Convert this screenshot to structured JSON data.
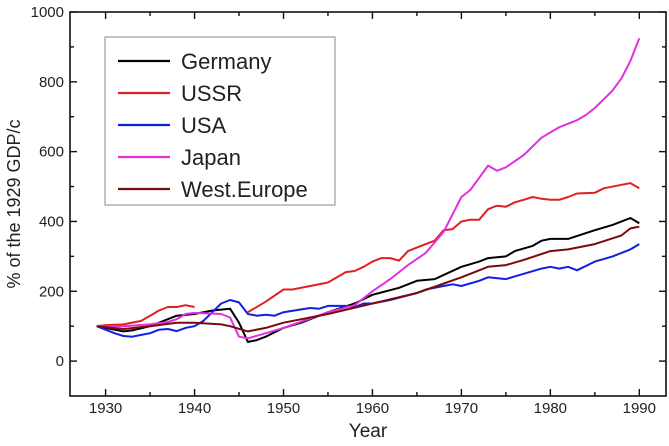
{
  "chart_data": {
    "type": "line",
    "title": "",
    "xlabel": "Year",
    "ylabel": "% of the 1929 GDP/c",
    "xlim": [
      1926,
      1993
    ],
    "ylim": [
      -100,
      1000
    ],
    "xticks": [
      1930,
      1940,
      1950,
      1960,
      1970,
      1980,
      1990
    ],
    "yticks": [
      0,
      200,
      400,
      600,
      800,
      1000
    ],
    "grid": false,
    "legend_position": "top-left",
    "series": [
      {
        "name": "Germany",
        "color": "#000000",
        "segments": [
          [
            [
              1929,
              100
            ],
            [
              1930,
              95
            ],
            [
              1932,
              85
            ],
            [
              1933,
              88
            ],
            [
              1935,
              100
            ],
            [
              1937,
              120
            ],
            [
              1938,
              130
            ],
            [
              1940,
              135
            ],
            [
              1942,
              145
            ],
            [
              1944,
              150
            ],
            [
              1945,
              110
            ],
            [
              1946,
              55
            ],
            [
              1947,
              60
            ],
            [
              1948,
              70
            ],
            [
              1950,
              95
            ],
            [
              1952,
              110
            ],
            [
              1955,
              140
            ],
            [
              1958,
              165
            ],
            [
              1960,
              190
            ],
            [
              1963,
              210
            ],
            [
              1965,
              230
            ],
            [
              1967,
              235
            ],
            [
              1970,
              270
            ],
            [
              1972,
              285
            ],
            [
              1973,
              295
            ],
            [
              1975,
              300
            ],
            [
              1976,
              315
            ],
            [
              1978,
              330
            ],
            [
              1979,
              345
            ],
            [
              1980,
              350
            ],
            [
              1982,
              350
            ],
            [
              1985,
              375
            ],
            [
              1987,
              390
            ],
            [
              1989,
              410
            ],
            [
              1990,
              395
            ]
          ]
        ]
      },
      {
        "name": "USSR",
        "color": "#e02020",
        "segments": [
          [
            [
              1929,
              100
            ],
            [
              1930,
              103
            ],
            [
              1932,
              105
            ],
            [
              1934,
              115
            ],
            [
              1935,
              130
            ],
            [
              1936,
              145
            ],
            [
              1937,
              155
            ],
            [
              1938,
              155
            ],
            [
              1939,
              160
            ],
            [
              1940,
              155
            ]
          ],
          [
            [
              1946,
              140
            ],
            [
              1948,
              170
            ],
            [
              1950,
              205
            ],
            [
              1951,
              205
            ],
            [
              1953,
              215
            ],
            [
              1955,
              225
            ],
            [
              1957,
              255
            ],
            [
              1958,
              258
            ],
            [
              1959,
              270
            ],
            [
              1960,
              285
            ],
            [
              1961,
              295
            ],
            [
              1962,
              295
            ],
            [
              1963,
              288
            ],
            [
              1964,
              315
            ],
            [
              1965,
              325
            ],
            [
              1966,
              335
            ],
            [
              1967,
              345
            ],
            [
              1968,
              375
            ],
            [
              1969,
              378
            ],
            [
              1970,
              400
            ],
            [
              1971,
              405
            ],
            [
              1972,
              405
            ],
            [
              1973,
              435
            ],
            [
              1974,
              445
            ],
            [
              1975,
              442
            ],
            [
              1976,
              455
            ],
            [
              1977,
              462
            ],
            [
              1978,
              470
            ],
            [
              1979,
              465
            ],
            [
              1980,
              462
            ],
            [
              1981,
              462
            ],
            [
              1982,
              470
            ],
            [
              1983,
              480
            ],
            [
              1985,
              482
            ],
            [
              1986,
              495
            ],
            [
              1988,
              505
            ],
            [
              1989,
              510
            ],
            [
              1990,
              495
            ]
          ]
        ]
      },
      {
        "name": "USA",
        "color": "#1020e0",
        "segments": [
          [
            [
              1929,
              100
            ],
            [
              1930,
              90
            ],
            [
              1931,
              80
            ],
            [
              1932,
              72
            ],
            [
              1933,
              70
            ],
            [
              1934,
              75
            ],
            [
              1935,
              80
            ],
            [
              1936,
              90
            ],
            [
              1937,
              92
            ],
            [
              1938,
              86
            ],
            [
              1939,
              95
            ],
            [
              1940,
              100
            ],
            [
              1941,
              115
            ],
            [
              1942,
              140
            ],
            [
              1943,
              165
            ],
            [
              1944,
              175
            ],
            [
              1945,
              168
            ],
            [
              1946,
              135
            ],
            [
              1947,
              130
            ],
            [
              1948,
              133
            ],
            [
              1949,
              130
            ],
            [
              1950,
              140
            ],
            [
              1952,
              148
            ],
            [
              1953,
              152
            ],
            [
              1954,
              150
            ],
            [
              1955,
              158
            ],
            [
              1957,
              158
            ],
            [
              1958,
              155
            ],
            [
              1959,
              165
            ],
            [
              1960,
              165
            ],
            [
              1962,
              175
            ],
            [
              1965,
              195
            ],
            [
              1966,
              205
            ],
            [
              1968,
              215
            ],
            [
              1969,
              220
            ],
            [
              1970,
              215
            ],
            [
              1972,
              230
            ],
            [
              1973,
              240
            ],
            [
              1975,
              235
            ],
            [
              1977,
              250
            ],
            [
              1979,
              265
            ],
            [
              1980,
              270
            ],
            [
              1981,
              265
            ],
            [
              1982,
              270
            ],
            [
              1983,
              260
            ],
            [
              1985,
              285
            ],
            [
              1987,
              300
            ],
            [
              1988,
              310
            ],
            [
              1989,
              320
            ],
            [
              1990,
              335
            ]
          ]
        ]
      },
      {
        "name": "Japan",
        "color": "#e030e0",
        "segments": [
          [
            [
              1929,
              100
            ],
            [
              1932,
              100
            ],
            [
              1935,
              105
            ],
            [
              1937,
              112
            ],
            [
              1938,
              120
            ],
            [
              1939,
              135
            ],
            [
              1940,
              138
            ],
            [
              1943,
              135
            ],
            [
              1944,
              125
            ],
            [
              1945,
              70
            ],
            [
              1946,
              65
            ],
            [
              1948,
              80
            ],
            [
              1950,
              95
            ],
            [
              1955,
              140
            ],
            [
              1958,
              160
            ],
            [
              1960,
              200
            ],
            [
              1962,
              235
            ],
            [
              1964,
              275
            ],
            [
              1966,
              310
            ],
            [
              1968,
              370
            ],
            [
              1969,
              420
            ],
            [
              1970,
              470
            ],
            [
              1971,
              490
            ],
            [
              1972,
              525
            ],
            [
              1973,
              560
            ],
            [
              1974,
              545
            ],
            [
              1975,
              555
            ],
            [
              1977,
              590
            ],
            [
              1979,
              640
            ],
            [
              1980,
              655
            ],
            [
              1981,
              670
            ],
            [
              1983,
              690
            ],
            [
              1984,
              705
            ],
            [
              1985,
              725
            ],
            [
              1986,
              750
            ],
            [
              1987,
              775
            ],
            [
              1988,
              810
            ],
            [
              1989,
              860
            ],
            [
              1990,
              925
            ]
          ]
        ]
      },
      {
        "name": "West.Europe",
        "color": "#7a0a0a",
        "segments": [
          [
            [
              1929,
              100
            ],
            [
              1932,
              92
            ],
            [
              1935,
              100
            ],
            [
              1938,
              110
            ],
            [
              1940,
              110
            ],
            [
              1943,
              105
            ],
            [
              1944,
              100
            ],
            [
              1946,
              85
            ],
            [
              1948,
              95
            ],
            [
              1950,
              110
            ],
            [
              1955,
              135
            ],
            [
              1960,
              165
            ],
            [
              1965,
              195
            ],
            [
              1970,
              240
            ],
            [
              1973,
              270
            ],
            [
              1975,
              275
            ],
            [
              1977,
              290
            ],
            [
              1980,
              315
            ],
            [
              1982,
              320
            ],
            [
              1985,
              335
            ],
            [
              1988,
              360
            ],
            [
              1989,
              380
            ],
            [
              1990,
              385
            ]
          ]
        ]
      }
    ]
  }
}
